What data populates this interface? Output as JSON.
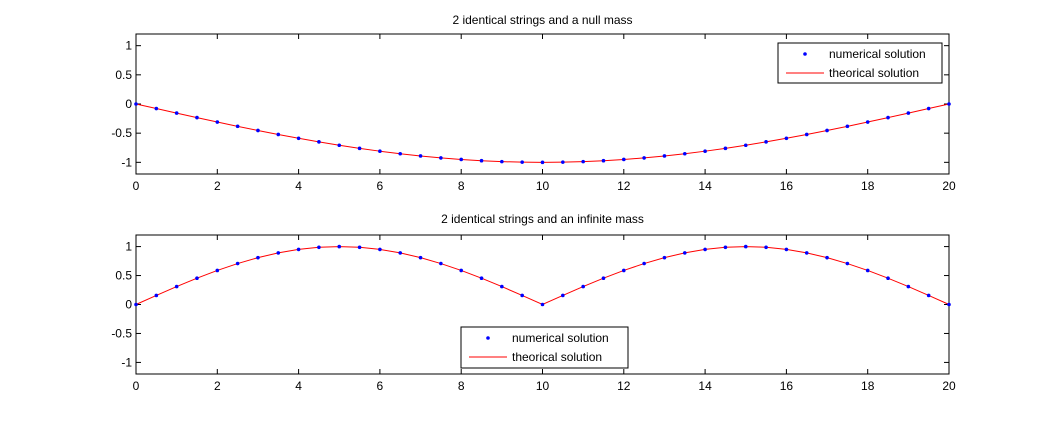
{
  "figure": {
    "background": "#ffffff",
    "axes_color": "#000000"
  },
  "chart_data": [
    {
      "type": "line",
      "title": "2 identical strings and a null mass",
      "xlabel": "",
      "ylabel": "",
      "xlim": [
        0,
        20
      ],
      "ylim": [
        -1.2,
        1.2
      ],
      "xticks": [
        "0",
        "2",
        "4",
        "6",
        "8",
        "10",
        "12",
        "14",
        "16",
        "18",
        "20"
      ],
      "yticks": [
        "1",
        "0.5",
        "0",
        "-0.5",
        "-1"
      ],
      "grid": false,
      "legend_position": "top-right",
      "series": [
        {
          "name": "numerical solution",
          "style": "markers",
          "color": "#0000ff",
          "x": [
            0,
            0.5,
            1,
            1.5,
            2,
            2.5,
            3,
            3.5,
            4,
            4.5,
            5,
            5.5,
            6,
            6.5,
            7,
            7.5,
            8,
            8.5,
            9,
            9.5,
            10,
            10.5,
            11,
            11.5,
            12,
            12.5,
            13,
            13.5,
            14,
            14.5,
            15,
            15.5,
            16,
            16.5,
            17,
            17.5,
            18,
            18.5,
            19,
            19.5,
            20
          ],
          "y": [
            0,
            -0.078,
            -0.156,
            -0.233,
            -0.309,
            -0.383,
            -0.454,
            -0.522,
            -0.588,
            -0.649,
            -0.707,
            -0.76,
            -0.809,
            -0.853,
            -0.891,
            -0.924,
            -0.951,
            -0.972,
            -0.988,
            -0.997,
            -1.0,
            -0.997,
            -0.988,
            -0.972,
            -0.951,
            -0.924,
            -0.891,
            -0.853,
            -0.809,
            -0.76,
            -0.707,
            -0.649,
            -0.588,
            -0.522,
            -0.454,
            -0.383,
            -0.309,
            -0.233,
            -0.156,
            -0.078,
            0
          ]
        },
        {
          "name": "theorical solution",
          "style": "line",
          "color": "#ff0000",
          "x": [
            0,
            0.5,
            1,
            1.5,
            2,
            2.5,
            3,
            3.5,
            4,
            4.5,
            5,
            5.5,
            6,
            6.5,
            7,
            7.5,
            8,
            8.5,
            9,
            9.5,
            10,
            10.5,
            11,
            11.5,
            12,
            12.5,
            13,
            13.5,
            14,
            14.5,
            15,
            15.5,
            16,
            16.5,
            17,
            17.5,
            18,
            18.5,
            19,
            19.5,
            20
          ],
          "y": [
            0,
            -0.078,
            -0.156,
            -0.233,
            -0.309,
            -0.383,
            -0.454,
            -0.522,
            -0.588,
            -0.649,
            -0.707,
            -0.76,
            -0.809,
            -0.853,
            -0.891,
            -0.924,
            -0.951,
            -0.972,
            -0.988,
            -0.997,
            -1.0,
            -0.997,
            -0.988,
            -0.972,
            -0.951,
            -0.924,
            -0.891,
            -0.853,
            -0.809,
            -0.76,
            -0.707,
            -0.649,
            -0.588,
            -0.522,
            -0.454,
            -0.383,
            -0.309,
            -0.233,
            -0.156,
            -0.078,
            0
          ]
        }
      ]
    },
    {
      "type": "line",
      "title": "2 identical strings and an infinite mass",
      "xlabel": "",
      "ylabel": "",
      "xlim": [
        0,
        20
      ],
      "ylim": [
        -1.2,
        1.2
      ],
      "xticks": [
        "0",
        "2",
        "4",
        "6",
        "8",
        "10",
        "12",
        "14",
        "16",
        "18",
        "20"
      ],
      "yticks": [
        "1",
        "0.5",
        "0",
        "-0.5",
        "-1"
      ],
      "grid": false,
      "legend_position": "bottom-center",
      "series": [
        {
          "name": "numerical solution",
          "style": "markers",
          "color": "#0000ff",
          "x": [
            0,
            0.5,
            1,
            1.5,
            2,
            2.5,
            3,
            3.5,
            4,
            4.5,
            5,
            5.5,
            6,
            6.5,
            7,
            7.5,
            8,
            8.5,
            9,
            9.5,
            10,
            10.5,
            11,
            11.5,
            12,
            12.5,
            13,
            13.5,
            14,
            14.5,
            15,
            15.5,
            16,
            16.5,
            17,
            17.5,
            18,
            18.5,
            19,
            19.5,
            20
          ],
          "y": [
            0,
            0.156,
            0.309,
            0.454,
            0.588,
            0.707,
            0.809,
            0.891,
            0.951,
            0.988,
            1.0,
            0.988,
            0.951,
            0.891,
            0.809,
            0.707,
            0.588,
            0.454,
            0.309,
            0.156,
            0,
            0.156,
            0.309,
            0.454,
            0.588,
            0.707,
            0.809,
            0.891,
            0.951,
            0.988,
            1.0,
            0.988,
            0.951,
            0.891,
            0.809,
            0.707,
            0.588,
            0.454,
            0.309,
            0.156,
            0
          ]
        },
        {
          "name": "theorical solution",
          "style": "line",
          "color": "#ff0000",
          "x": [
            0,
            0.5,
            1,
            1.5,
            2,
            2.5,
            3,
            3.5,
            4,
            4.5,
            5,
            5.5,
            6,
            6.5,
            7,
            7.5,
            8,
            8.5,
            9,
            9.5,
            10,
            10.5,
            11,
            11.5,
            12,
            12.5,
            13,
            13.5,
            14,
            14.5,
            15,
            15.5,
            16,
            16.5,
            17,
            17.5,
            18,
            18.5,
            19,
            19.5,
            20
          ],
          "y": [
            0,
            0.156,
            0.309,
            0.454,
            0.588,
            0.707,
            0.809,
            0.891,
            0.951,
            0.988,
            1.0,
            0.988,
            0.951,
            0.891,
            0.809,
            0.707,
            0.588,
            0.454,
            0.309,
            0.156,
            0,
            0.156,
            0.309,
            0.454,
            0.588,
            0.707,
            0.809,
            0.891,
            0.951,
            0.988,
            1.0,
            0.988,
            0.951,
            0.891,
            0.809,
            0.707,
            0.588,
            0.454,
            0.309,
            0.156,
            0
          ]
        }
      ]
    }
  ]
}
